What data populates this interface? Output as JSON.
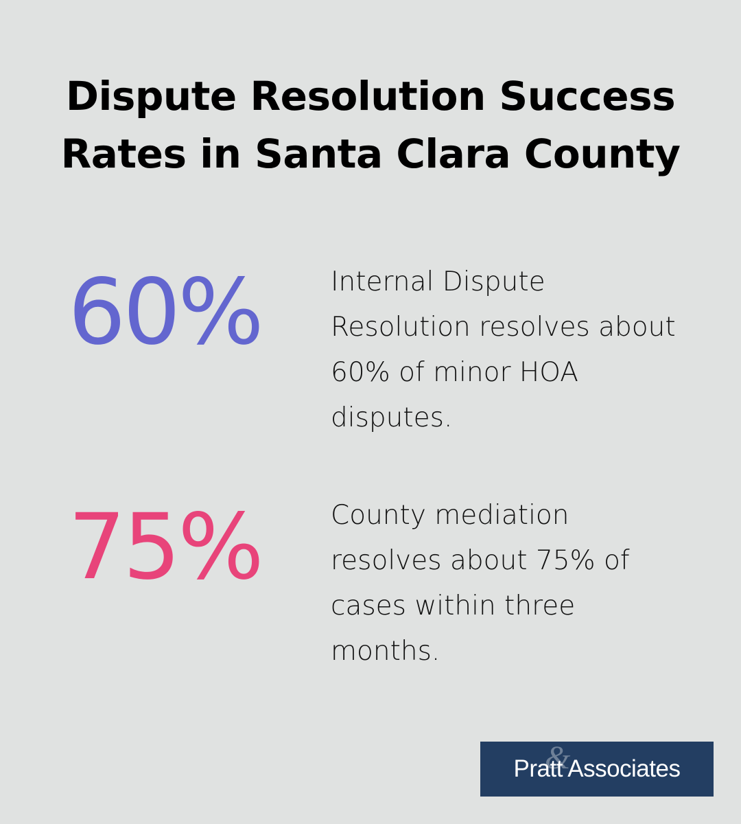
{
  "title": "Dispute Resolution Success Rates in Santa Clara County",
  "stats": [
    {
      "value": "60%",
      "description": "Internal Dispute Resolution resolves about 60% of minor HOA disputes.",
      "color": "#6366cf"
    },
    {
      "value": "75%",
      "description": "County mediation resolves about 75% of cases within three months.",
      "color": "#e8447a"
    }
  ],
  "logo": {
    "text": "Pratt Associates",
    "background": "#233e62"
  }
}
